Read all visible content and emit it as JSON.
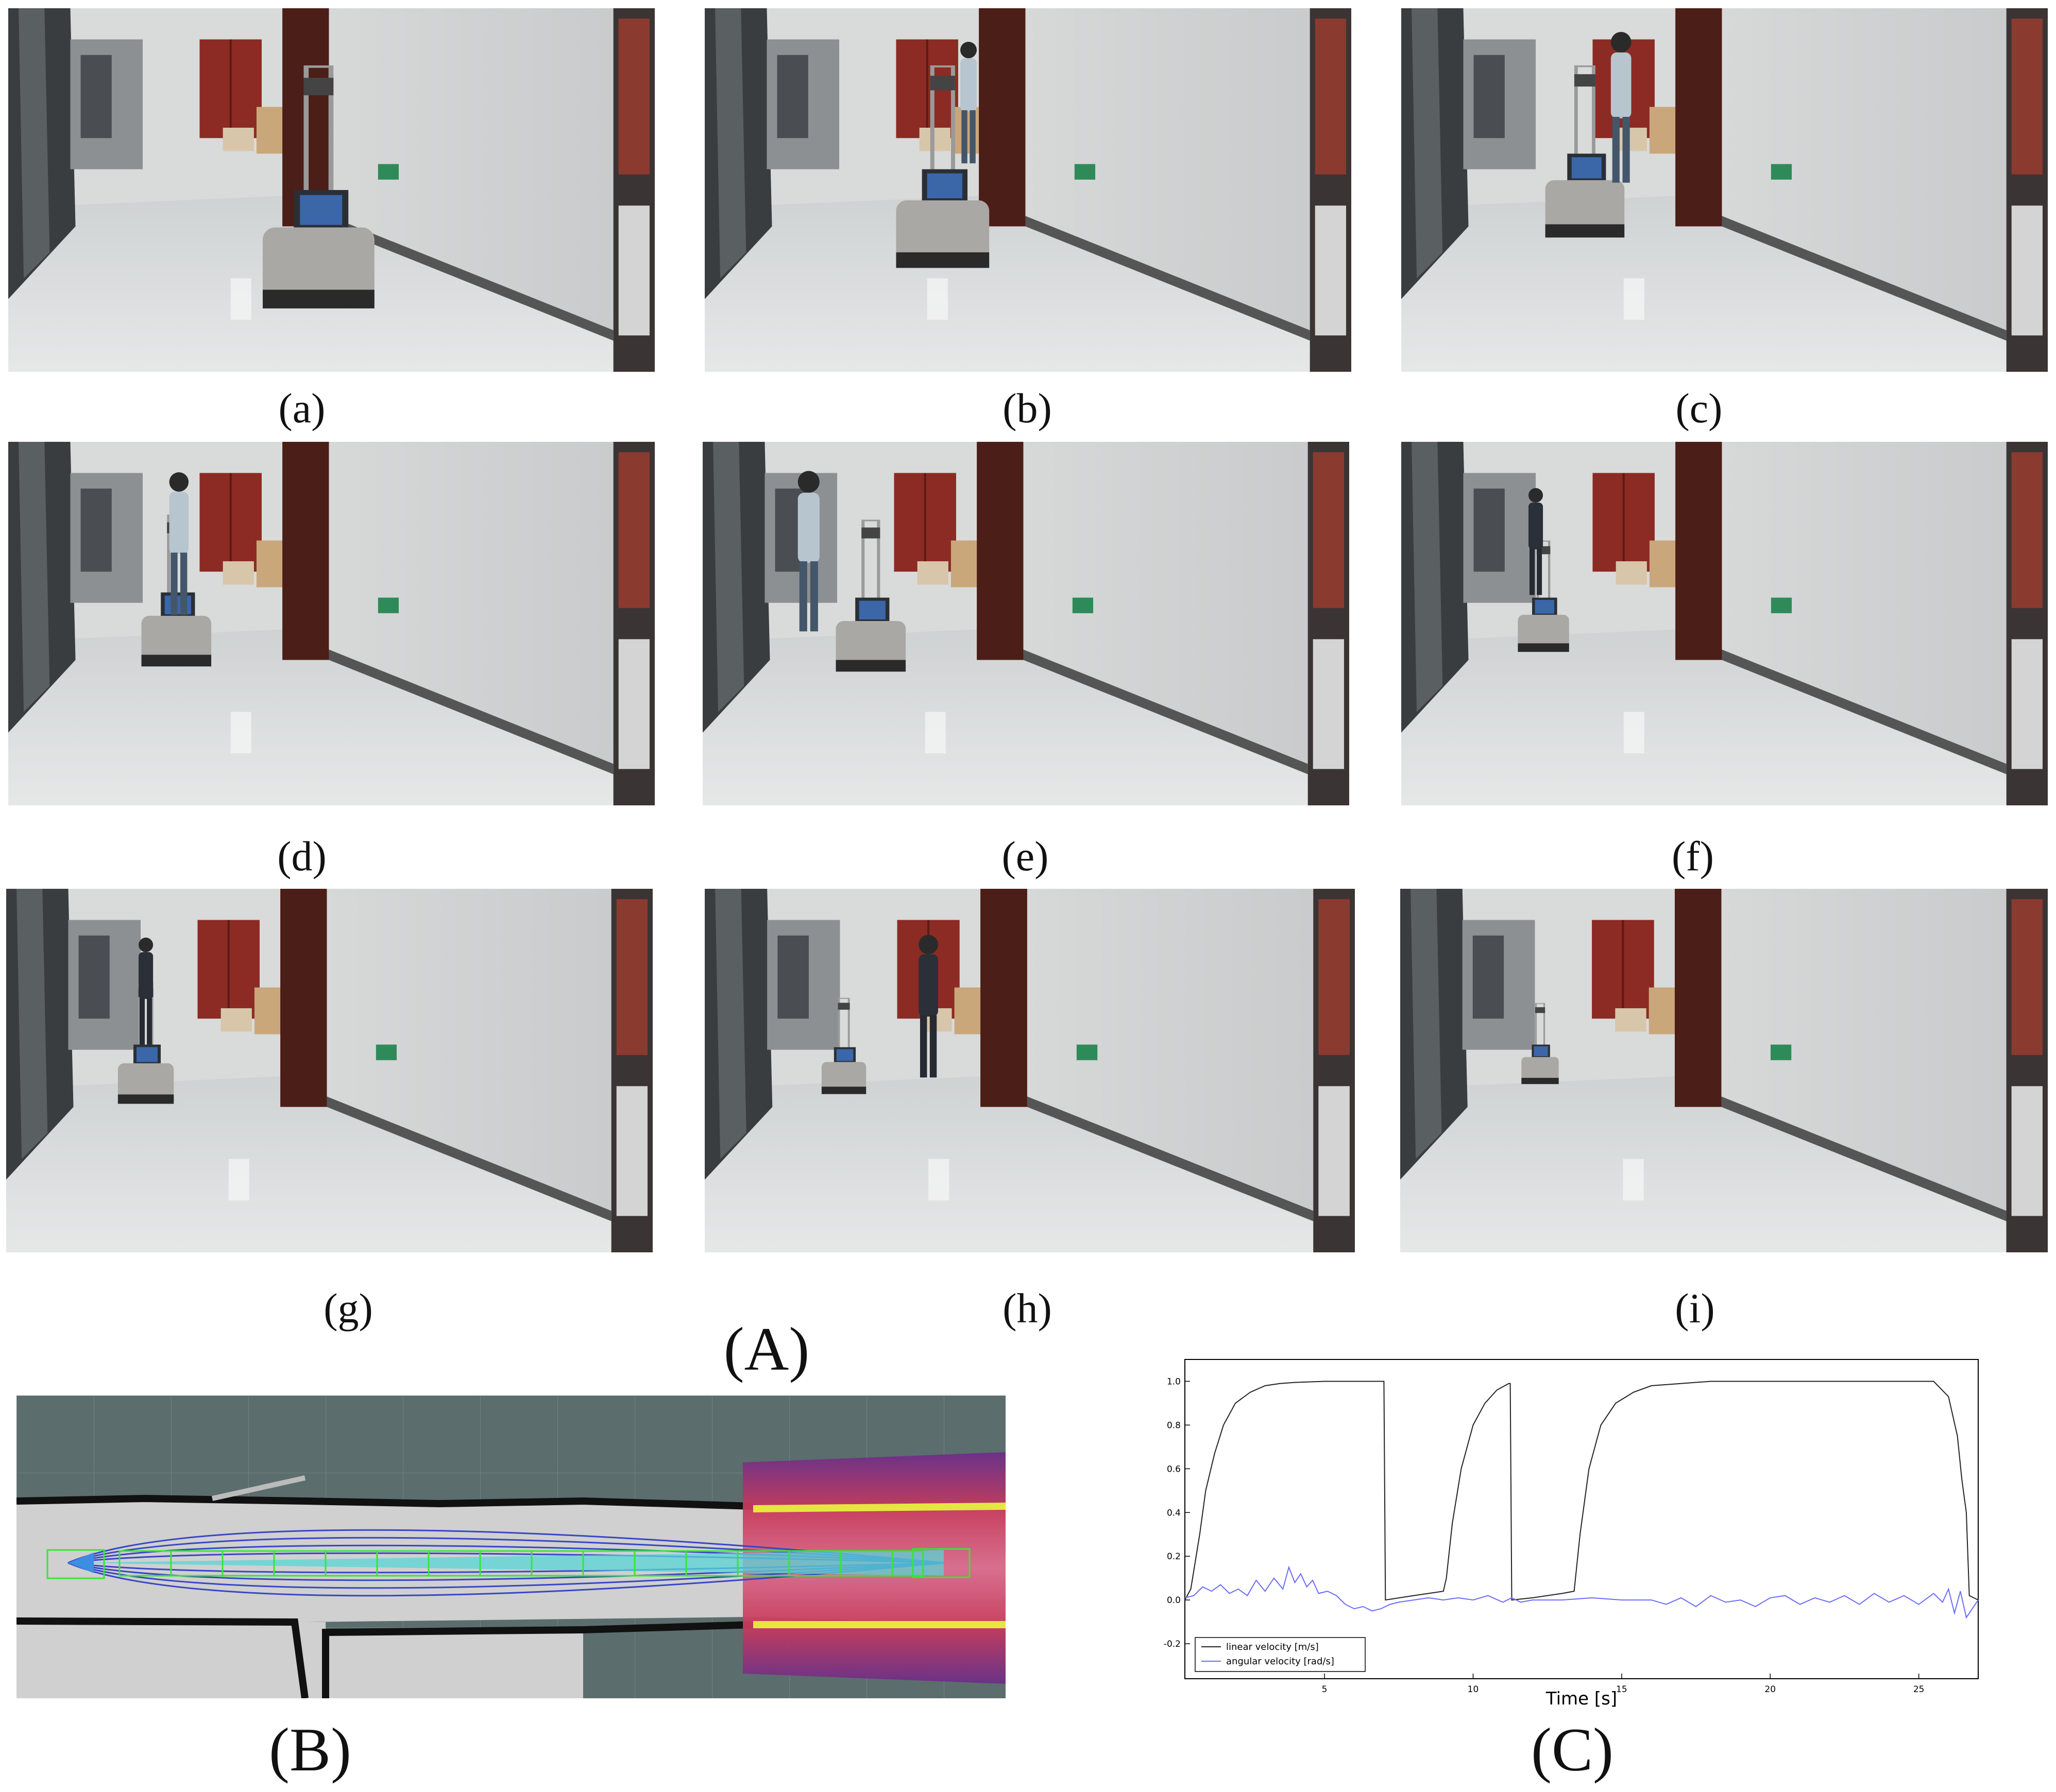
{
  "figure": {
    "photo_captions": [
      "(a)",
      "(b)",
      "(c)",
      "(d)",
      "(e)",
      "(f)",
      "(g)",
      "(h)",
      "(i)"
    ],
    "panel_A_label": "(A)",
    "panel_B_label": "(B)",
    "panel_C_label": "(C)"
  },
  "chart_data": {
    "type": "line",
    "xlabel": "Time [s]",
    "ylabel": "",
    "xlim": [
      0.3,
      27
    ],
    "ylim": [
      -0.36,
      1.1
    ],
    "x_ticks": [
      5,
      10,
      15,
      20,
      25
    ],
    "y_ticks": [
      -0.2,
      0.0,
      0.2,
      0.4,
      0.6,
      0.8,
      1.0
    ],
    "x_tick_labels": [
      "5",
      "10",
      "15",
      "20",
      "25"
    ],
    "y_tick_labels": [
      "-0.2",
      "0.0",
      "0.2",
      "0.4",
      "0.6",
      "0.8",
      "1.0"
    ],
    "grid": false,
    "legend_position": "bottom-left",
    "series": [
      {
        "name": "linear velocity [m/s]",
        "color": "#222222",
        "x": [
          0.3,
          0.5,
          0.8,
          1.0,
          1.3,
          1.6,
          2.0,
          2.5,
          3.0,
          3.5,
          4.0,
          5.0,
          6.0,
          6.9,
          7.0,
          7.05,
          8.0,
          9.0,
          9.1,
          9.3,
          9.6,
          10.0,
          10.4,
          10.8,
          11.2,
          11.25,
          11.3,
          12.0,
          13.0,
          13.4,
          13.6,
          13.9,
          14.3,
          14.8,
          15.4,
          16.0,
          17.0,
          18.0,
          20.0,
          22.0,
          24.0,
          25.5,
          26.0,
          26.3,
          26.45,
          26.6,
          26.7,
          27.0
        ],
        "y": [
          0.0,
          0.05,
          0.3,
          0.5,
          0.67,
          0.8,
          0.9,
          0.95,
          0.98,
          0.99,
          0.995,
          1.0,
          1.0,
          1.0,
          1.0,
          0.0,
          0.02,
          0.04,
          0.1,
          0.35,
          0.6,
          0.8,
          0.9,
          0.96,
          0.99,
          0.99,
          0.0,
          0.01,
          0.03,
          0.04,
          0.3,
          0.6,
          0.8,
          0.9,
          0.95,
          0.98,
          0.99,
          1.0,
          1.0,
          1.0,
          1.0,
          1.0,
          0.93,
          0.75,
          0.55,
          0.4,
          0.02,
          0.0
        ]
      },
      {
        "name": "angular velocity [rad/s]",
        "color": "#6b6bff",
        "x": [
          0.3,
          0.6,
          0.9,
          1.2,
          1.5,
          1.8,
          2.1,
          2.4,
          2.7,
          3.0,
          3.3,
          3.6,
          3.8,
          4.0,
          4.2,
          4.4,
          4.6,
          4.8,
          5.1,
          5.4,
          5.7,
          6.0,
          6.3,
          6.6,
          6.9,
          7.2,
          7.5,
          8.0,
          8.5,
          9.0,
          9.5,
          10.0,
          10.5,
          11.0,
          11.3,
          11.6,
          12.0,
          13.0,
          14.0,
          15.0,
          16.0,
          16.5,
          17.0,
          17.5,
          18.0,
          18.5,
          19.0,
          19.5,
          20.0,
          20.5,
          21.0,
          21.5,
          22.0,
          22.5,
          23.0,
          23.5,
          24.0,
          24.5,
          25.0,
          25.5,
          25.8,
          26.0,
          26.2,
          26.4,
          26.6,
          27.0
        ],
        "y": [
          0.01,
          0.02,
          0.06,
          0.04,
          0.07,
          0.03,
          0.05,
          0.02,
          0.09,
          0.04,
          0.1,
          0.05,
          0.15,
          0.08,
          0.12,
          0.06,
          0.09,
          0.03,
          0.04,
          0.02,
          -0.02,
          -0.04,
          -0.03,
          -0.05,
          -0.04,
          -0.02,
          -0.01,
          0.0,
          0.01,
          0.0,
          0.01,
          0.0,
          0.02,
          -0.01,
          0.01,
          -0.01,
          0.0,
          0.0,
          0.01,
          0.0,
          0.0,
          -0.02,
          0.01,
          -0.03,
          0.02,
          -0.01,
          0.0,
          -0.03,
          0.01,
          0.02,
          -0.02,
          0.01,
          -0.01,
          0.02,
          -0.02,
          0.03,
          -0.01,
          0.02,
          -0.02,
          0.03,
          -0.01,
          0.05,
          -0.06,
          0.04,
          -0.08,
          0.0
        ]
      }
    ]
  }
}
